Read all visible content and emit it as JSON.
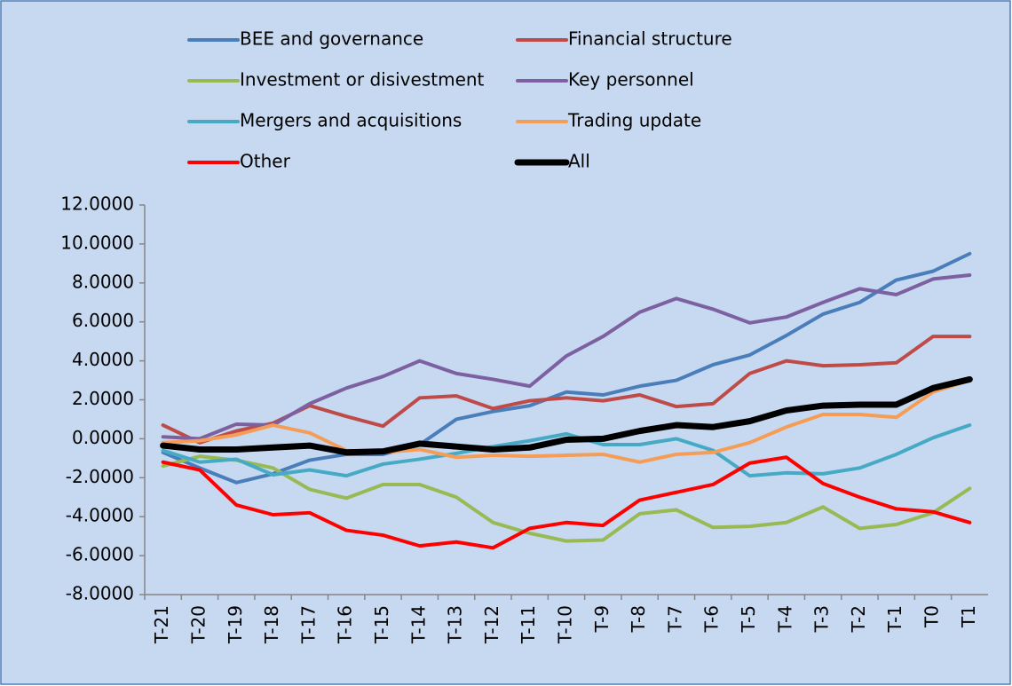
{
  "chart_data": {
    "type": "line",
    "categories": [
      "T-21",
      "T-20",
      "T-19",
      "T-18",
      "T-17",
      "T-16",
      "T-15",
      "T-14",
      "T-13",
      "T-12",
      "T-11",
      "T-10",
      "T-9",
      "T-8",
      "T-7",
      "T-6",
      "T-5",
      "T-4",
      "T-3",
      "T-2",
      "T-1",
      "T0",
      "T1"
    ],
    "ylim": [
      -8,
      12
    ],
    "yticks": [
      {
        "value": -8,
        "label": "-8.0000"
      },
      {
        "value": -6,
        "label": "-6.0000"
      },
      {
        "value": -4,
        "label": "-4.0000"
      },
      {
        "value": -2,
        "label": "-2.0000"
      },
      {
        "value": 0,
        "label": "0.0000"
      },
      {
        "value": 2,
        "label": "2.0000"
      },
      {
        "value": 4,
        "label": "4.0000"
      },
      {
        "value": 6,
        "label": "6.0000"
      },
      {
        "value": 8,
        "label": "8.0000"
      },
      {
        "value": 10,
        "label": "10.0000"
      },
      {
        "value": 12,
        "label": "12.0000"
      }
    ],
    "legend": "top",
    "series": [
      {
        "name": "BEE and governance",
        "color": "#4a7ebb",
        "line_width": 4,
        "values": [
          -0.7,
          -1.5,
          -2.25,
          -1.8,
          -1.1,
          -0.8,
          -0.8,
          -0.3,
          1.0,
          1.4,
          1.7,
          2.4,
          2.25,
          2.7,
          3.0,
          3.8,
          4.3,
          5.3,
          6.4,
          7.0,
          8.15,
          8.6,
          9.5
        ]
      },
      {
        "name": "Financial structure",
        "color": "#be4b48",
        "line_width": 4,
        "values": [
          0.7,
          -0.2,
          0.4,
          0.8,
          1.7,
          1.15,
          0.65,
          2.1,
          2.2,
          1.55,
          1.95,
          2.1,
          1.95,
          2.25,
          1.65,
          1.8,
          3.35,
          4.0,
          3.75,
          3.8,
          3.9,
          5.25,
          5.25
        ]
      },
      {
        "name": "Investment or disivestment",
        "color": "#98b954",
        "line_width": 4,
        "values": [
          -1.4,
          -0.9,
          -1.1,
          -1.5,
          -2.6,
          -3.05,
          -2.35,
          -2.35,
          -3.0,
          -4.3,
          -4.85,
          -5.25,
          -5.2,
          -3.85,
          -3.65,
          -4.55,
          -4.5,
          -4.3,
          -3.5,
          -4.6,
          -4.4,
          -3.8,
          -2.55
        ]
      },
      {
        "name": "Key personnel",
        "color": "#7d60a0",
        "line_width": 4,
        "values": [
          0.1,
          0.0,
          0.75,
          0.7,
          1.8,
          2.6,
          3.2,
          4.0,
          3.35,
          3.05,
          2.7,
          4.25,
          5.25,
          6.5,
          7.2,
          6.65,
          5.95,
          6.25,
          7.0,
          7.7,
          7.4,
          8.2,
          8.4
        ]
      },
      {
        "name": "Mergers and acquisitions",
        "color": "#46aac5",
        "line_width": 4,
        "values": [
          -0.6,
          -1.2,
          -1.05,
          -1.85,
          -1.6,
          -1.9,
          -1.3,
          -1.05,
          -0.75,
          -0.4,
          -0.1,
          0.25,
          -0.3,
          -0.3,
          0.0,
          -0.6,
          -1.9,
          -1.75,
          -1.8,
          -1.5,
          -0.8,
          0.05,
          0.7
        ]
      },
      {
        "name": "Trading update",
        "color": "#f59d56",
        "line_width": 4,
        "values": [
          -0.2,
          -0.1,
          0.2,
          0.7,
          0.3,
          -0.6,
          -0.7,
          -0.55,
          -0.95,
          -0.85,
          -0.9,
          -0.85,
          -0.8,
          -1.2,
          -0.8,
          -0.7,
          -0.2,
          0.6,
          1.25,
          1.25,
          1.1,
          2.4,
          3.0
        ]
      },
      {
        "name": "Other",
        "color": "#ff0000",
        "line_width": 4,
        "values": [
          -1.2,
          -1.6,
          -3.4,
          -3.9,
          -3.8,
          -4.7,
          -4.95,
          -5.5,
          -5.3,
          -5.6,
          -4.6,
          -4.3,
          -4.45,
          -3.15,
          -2.75,
          -2.35,
          -1.25,
          -0.95,
          -2.3,
          -3.0,
          -3.6,
          -3.75,
          -4.3
        ]
      },
      {
        "name": "All",
        "color": "#000000",
        "line_width": 7,
        "values": [
          -0.35,
          -0.55,
          -0.55,
          -0.45,
          -0.35,
          -0.7,
          -0.65,
          -0.25,
          -0.4,
          -0.55,
          -0.45,
          -0.05,
          0.0,
          0.4,
          0.7,
          0.6,
          0.9,
          1.45,
          1.7,
          1.75,
          1.75,
          2.6,
          3.05
        ]
      }
    ]
  }
}
